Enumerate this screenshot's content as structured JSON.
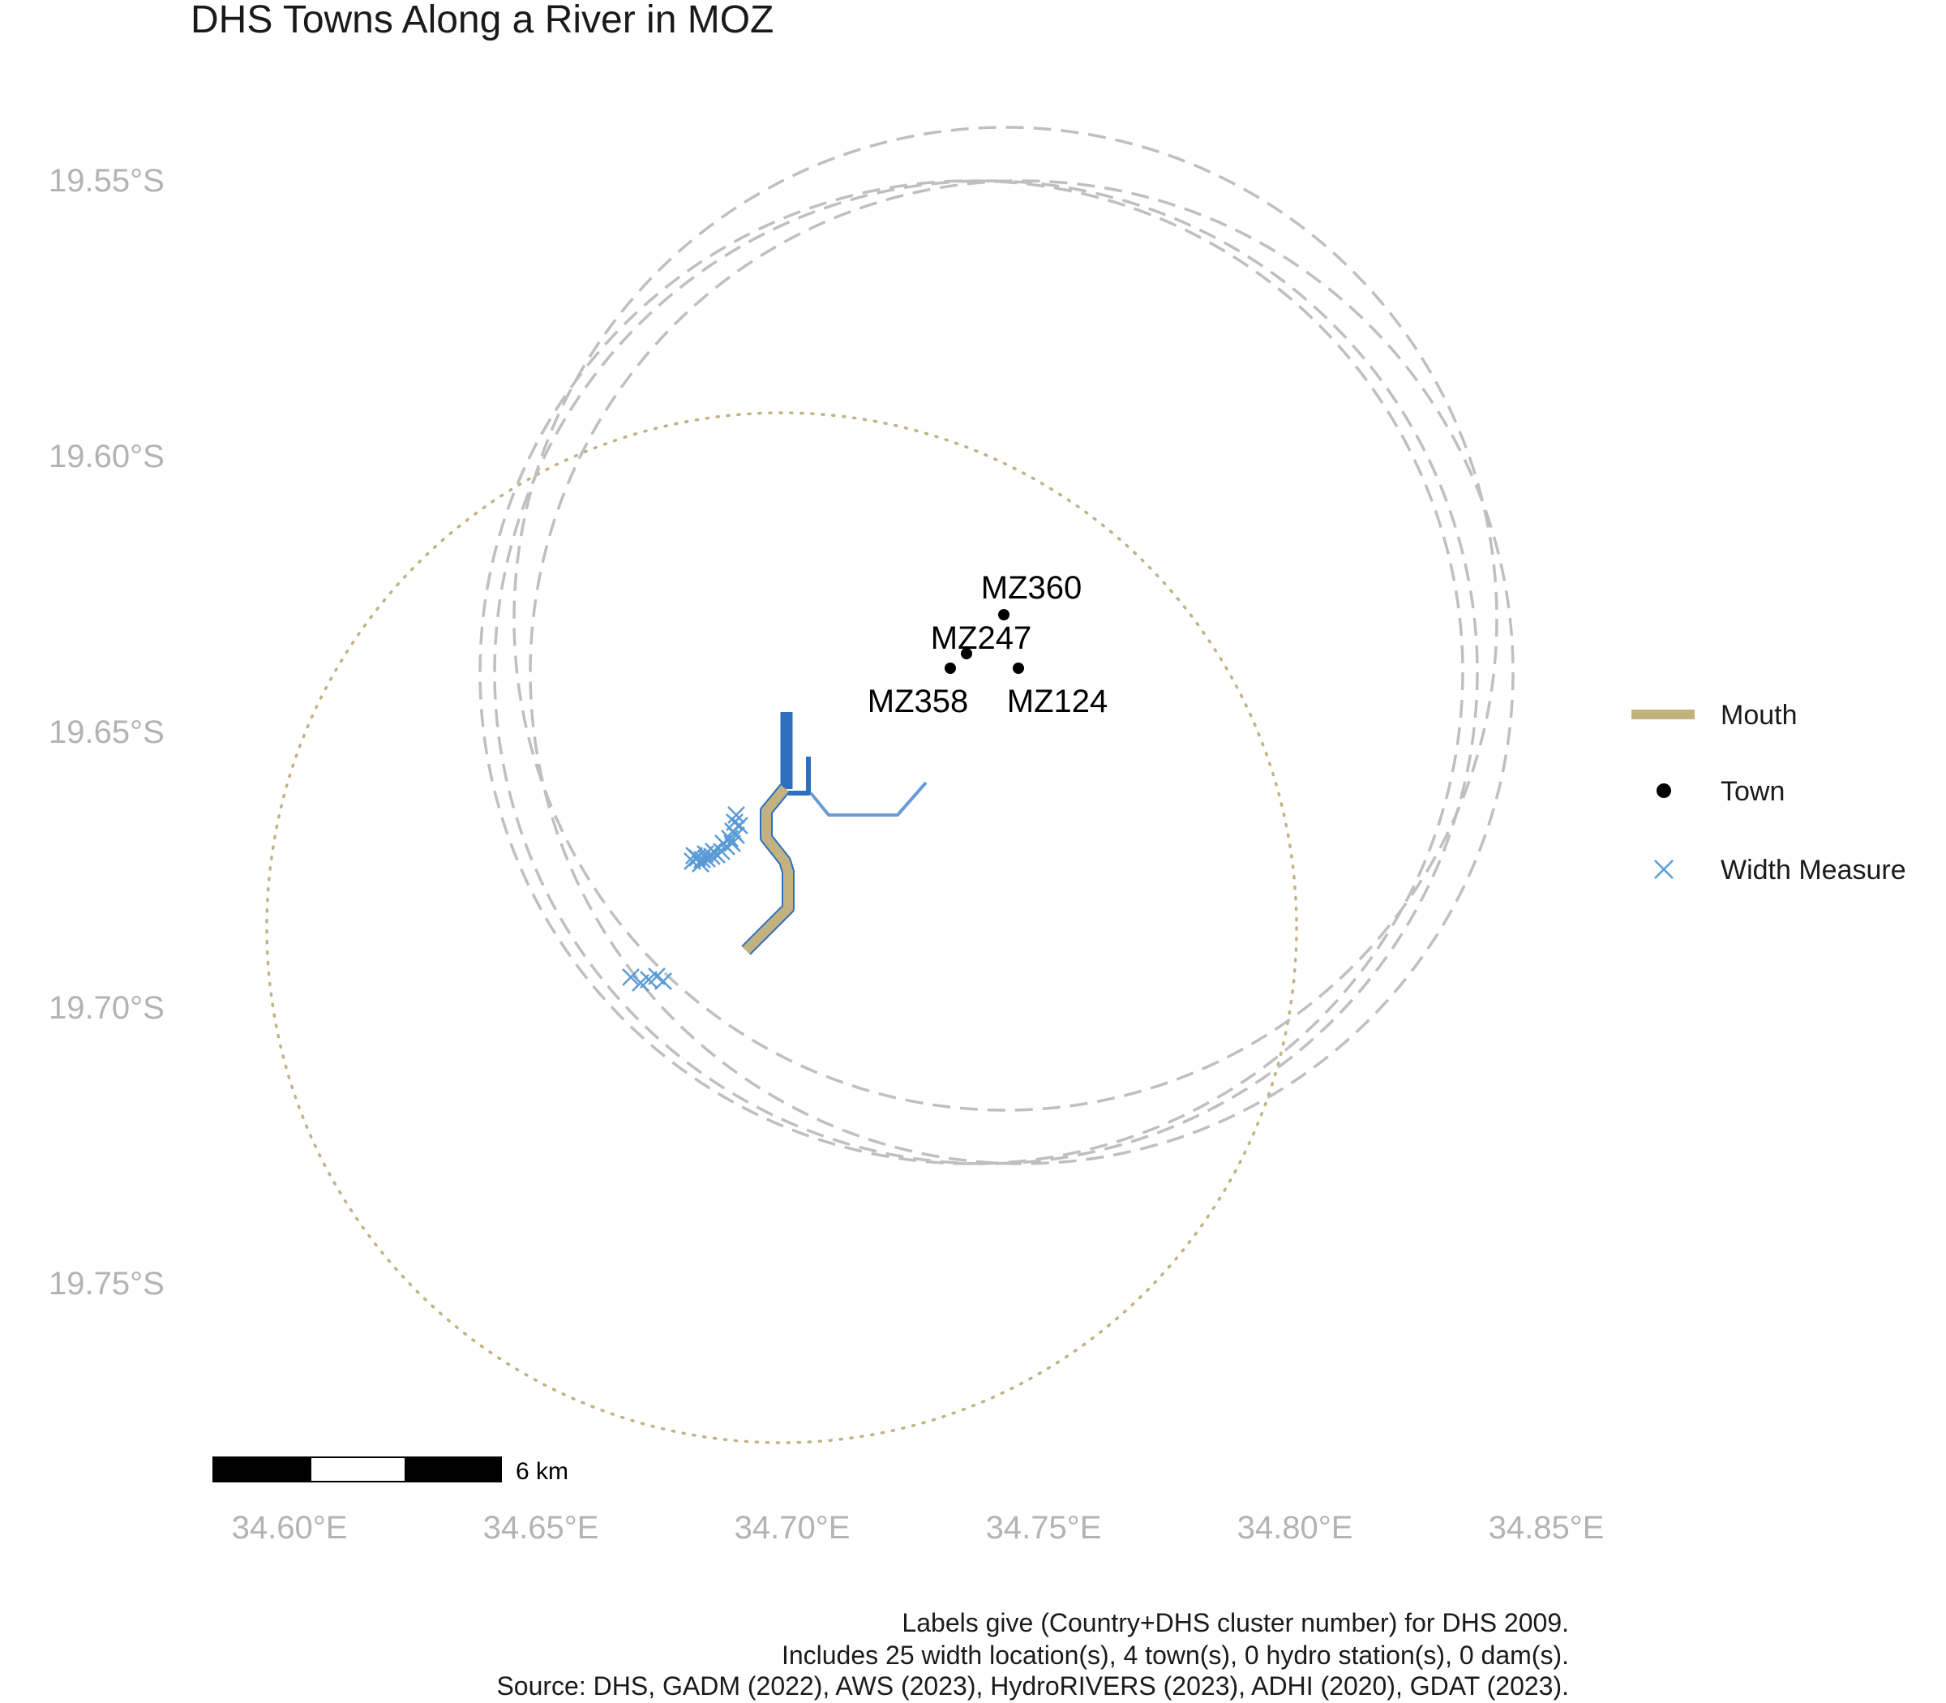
{
  "title": "DHS Towns Along a River in MOZ",
  "y_axis_labels": [
    "19.55°S",
    "19.60°S",
    "19.65°S",
    "19.70°S",
    "19.75°S"
  ],
  "x_axis_labels": [
    "34.60°E",
    "34.65°E",
    "34.70°E",
    "34.75°E",
    "34.80°E",
    "34.85°E"
  ],
  "towns": [
    {
      "label": "MZ360",
      "lon": 34.742,
      "lat": -19.629
    },
    {
      "label": "MZ247",
      "lon": 34.736,
      "lat": -19.636
    },
    {
      "label": "MZ358",
      "lon": 34.732,
      "lat": -19.639
    },
    {
      "label": "MZ124",
      "lon": 34.745,
      "lat": -19.639
    }
  ],
  "legend": [
    {
      "label": "Mouth",
      "symbol": "line",
      "color": "#c2b280"
    },
    {
      "label": "Town",
      "symbol": "dot",
      "color": "#000000"
    },
    {
      "label": "Width Measure",
      "symbol": "cross",
      "color": "#5b9bd5"
    }
  ],
  "scale_bar": {
    "label": "6 km"
  },
  "caption": [
    "Labels give (Country+DHS cluster number) for DHS 2009.",
    "Includes 25 width location(s), 4 town(s), 0 hydro station(s), 0 dam(s).",
    "Source: DHS, GADM (2022), AWS (2023), HydroRIVERS (2023), ADHI (2020), GDAT (2023)."
  ],
  "colors": {
    "river_main": "#2e6fc0",
    "river_tributary": "#6b9bd6",
    "mouth": "#c2b280",
    "buffer_circle": "#bfbfbf",
    "mouth_circle": "#c2b280",
    "width_measure": "#5b9bd5",
    "town": "#000000"
  }
}
